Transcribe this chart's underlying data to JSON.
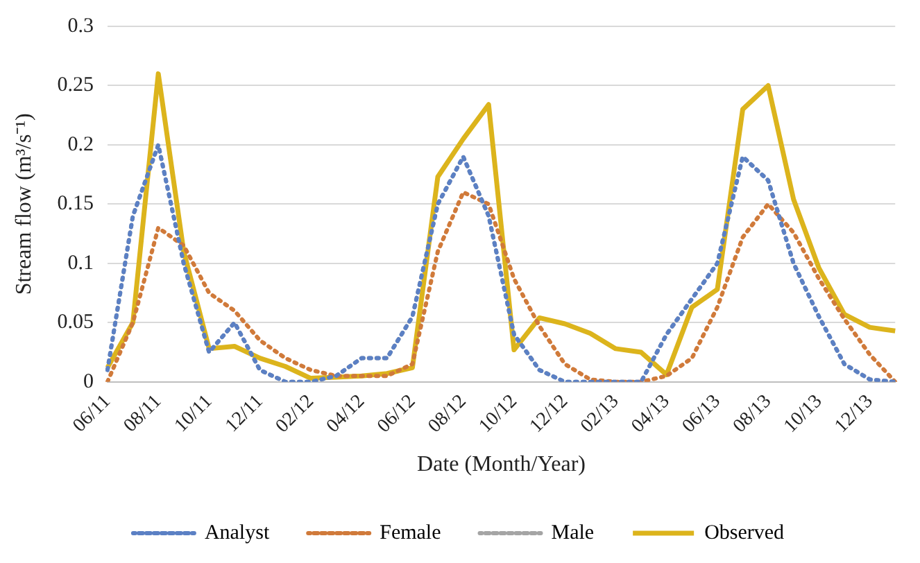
{
  "chart_data": {
    "type": "line",
    "xlabel": "Date (Month/Year)",
    "ylabel": "Stream flow (m³/s⁻¹)",
    "categories": [
      "06/11",
      null,
      "08/11",
      null,
      "10/11",
      null,
      "12/11",
      null,
      "02/12",
      null,
      "04/12",
      null,
      "06/12",
      null,
      "08/12",
      null,
      "10/12",
      null,
      "12/12",
      null,
      "02/13",
      null,
      "04/13",
      null,
      "06/13",
      null,
      "08/13",
      null,
      "10/13",
      null,
      "12/13",
      null
    ],
    "series": [
      {
        "name": "Analyst",
        "color": "#5b80c4",
        "line_style": "dotted",
        "values": [
          0.01,
          0.14,
          0.2,
          0.1,
          0.025,
          0.05,
          0.01,
          0,
          0,
          0.005,
          0.02,
          0.02,
          0.055,
          0.15,
          0.19,
          0.14,
          0.04,
          0.01,
          0,
          0,
          0,
          0,
          0.04,
          0.07,
          0.1,
          0.19,
          0.17,
          0.1,
          0.055,
          0.015,
          0.002,
          0
        ]
      },
      {
        "name": "Female",
        "color": "#d07a3a",
        "line_style": "dotted",
        "values": [
          0,
          0.05,
          0.13,
          0.115,
          0.075,
          0.06,
          0.035,
          0.02,
          0.01,
          0.005,
          0.005,
          0.005,
          0.015,
          0.11,
          0.16,
          0.15,
          0.087,
          0.047,
          0.015,
          0.002,
          0,
          0,
          0.005,
          0.02,
          0.063,
          0.122,
          0.15,
          0.126,
          0.087,
          0.053,
          0.023,
          0
        ]
      },
      {
        "name": "Male",
        "color": "#a5a5a5",
        "line_style": "dotted",
        "values": [
          0.01,
          0.14,
          0.2,
          0.1,
          0.025,
          0.05,
          0.01,
          0,
          0,
          0.005,
          0.02,
          0.02,
          0.055,
          0.15,
          0.19,
          0.14,
          0.04,
          0.01,
          0,
          0,
          0,
          0,
          0.04,
          0.07,
          0.1,
          0.19,
          0.17,
          0.1,
          0.055,
          0.015,
          0.002,
          0
        ]
      },
      {
        "name": "Observed",
        "color": "#dcb41c",
        "line_style": "solid",
        "values": [
          0.012,
          0.05,
          0.26,
          0.11,
          0.028,
          0.03,
          0.02,
          0.013,
          0.003,
          0.004,
          0.005,
          0.007,
          0.012,
          0.173,
          0.205,
          0.234,
          0.027,
          0.054,
          0.049,
          0.041,
          0.028,
          0.025,
          0.006,
          0.063,
          0.078,
          0.23,
          0.25,
          0.154,
          0.096,
          0.057,
          0.046,
          0.043
        ]
      }
    ],
    "ylim": [
      0,
      0.3
    ],
    "yticks": [
      0,
      0.05,
      0.1,
      0.15,
      0.2,
      0.25,
      0.3
    ],
    "grid": "y",
    "legend": "bottom",
    "marker": "none"
  }
}
